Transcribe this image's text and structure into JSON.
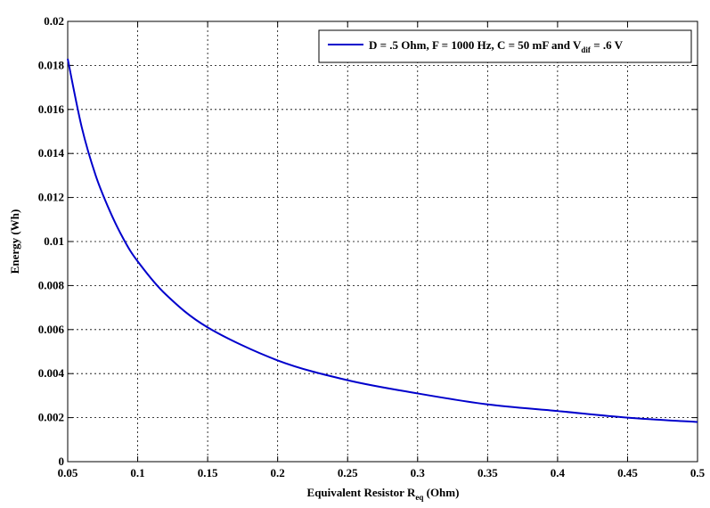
{
  "chart_data": {
    "type": "line",
    "title": "",
    "xlabel": "Equivalent Resistor R",
    "xlabel_sub": "eq",
    "xlabel_suffix": " (Ohm)",
    "ylabel": "Energy (Wh)",
    "xlim": [
      0.05,
      0.5
    ],
    "ylim": [
      0,
      0.02
    ],
    "xticks": [
      0.05,
      0.1,
      0.15,
      0.2,
      0.25,
      0.3,
      0.35,
      0.4,
      0.45,
      0.5
    ],
    "xtick_labels": [
      "0.05",
      "0.1",
      "0.15",
      "0.2",
      "0.25",
      "0.3",
      "0.35",
      "0.4",
      "0.45",
      "0.5"
    ],
    "yticks": [
      0,
      0.002,
      0.004,
      0.006,
      0.008,
      0.01,
      0.012,
      0.014,
      0.016,
      0.018,
      0.02
    ],
    "ytick_labels": [
      "0",
      "0.002",
      "0.004",
      "0.006",
      "0.008",
      "0.01",
      "0.012",
      "0.014",
      "0.016",
      "0.018",
      "0.02"
    ],
    "grid": true,
    "legend_position": "top-right",
    "legend": {
      "text_main": "D = .5 Ohm, F = 1000 Hz, C = 50 mF and V",
      "text_sub": "dif",
      "text_end": " = .6 V"
    },
    "series": [
      {
        "color": "#0000cc",
        "x": [
          0.05,
          0.06,
          0.07,
          0.08,
          0.09,
          0.1,
          0.12,
          0.15,
          0.2,
          0.25,
          0.3,
          0.35,
          0.4,
          0.45,
          0.5
        ],
        "y": [
          0.0183,
          0.0152,
          0.013,
          0.0114,
          0.0101,
          0.0091,
          0.0076,
          0.0061,
          0.0046,
          0.0037,
          0.0031,
          0.0026,
          0.0023,
          0.002,
          0.0018
        ]
      }
    ]
  }
}
